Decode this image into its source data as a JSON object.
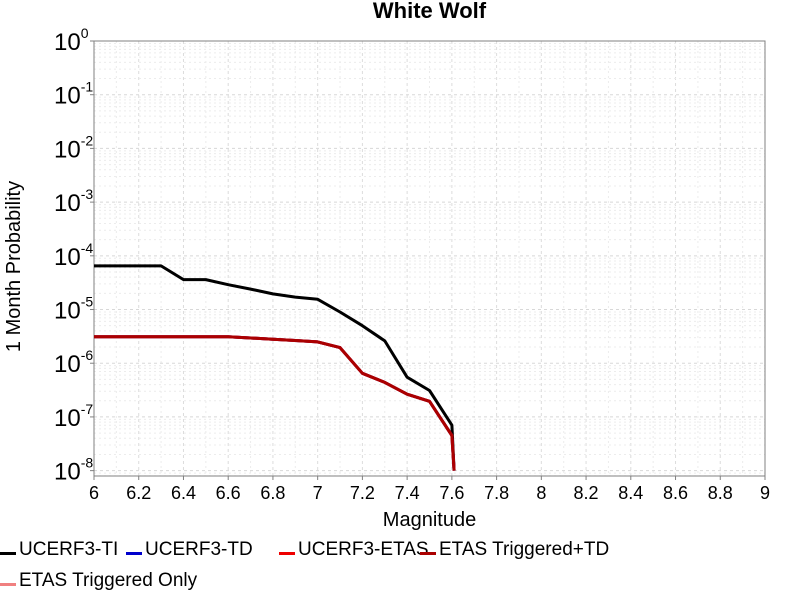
{
  "chart_data": {
    "type": "line",
    "title": "White Wolf",
    "xlabel": "Magnitude",
    "ylabel": "1 Month Probability",
    "xlim": [
      6,
      9
    ],
    "ylim_log10": [
      -8.1,
      0
    ],
    "y_scale": "log",
    "grid": true,
    "x_ticks": [
      "6",
      "6.2",
      "6.4",
      "6.6",
      "6.8",
      "7",
      "7.2",
      "7.4",
      "7.6",
      "7.8",
      "8",
      "8.2",
      "8.4",
      "8.6",
      "8.8",
      "9"
    ],
    "y_tick_base": "10",
    "y_tick_exponents": [
      "0",
      "-1",
      "-2",
      "-3",
      "-4",
      "-5",
      "-6",
      "-7",
      "-8"
    ],
    "legend_position": "bottom",
    "series": [
      {
        "name": "UCERF3-TI",
        "color": "#000000",
        "x": [
          6.0,
          6.1,
          6.2,
          6.3,
          6.4,
          6.5,
          6.6,
          6.7,
          6.8,
          6.9,
          7.0,
          7.1,
          7.2,
          7.3,
          7.4,
          7.5,
          7.6,
          7.61
        ],
        "y": [
          6.5e-05,
          6.5e-05,
          6.5e-05,
          6.5e-05,
          3.6e-05,
          3.6e-05,
          2.9e-05,
          2.4e-05,
          1.95e-05,
          1.7e-05,
          1.55e-05,
          9e-06,
          5e-06,
          2.6e-06,
          5.5e-07,
          3.1e-07,
          7e-08,
          1e-08
        ]
      },
      {
        "name": "UCERF3-TD",
        "color": "#0000cc",
        "x": [
          6.0,
          6.1,
          6.2,
          6.3,
          6.4,
          6.5,
          6.6,
          6.7,
          6.8,
          6.9,
          7.0,
          7.1,
          7.2,
          7.3,
          7.4,
          7.5,
          7.6,
          7.61
        ],
        "y": [
          3.1e-06,
          3.1e-06,
          3.1e-06,
          3.1e-06,
          3.1e-06,
          3.1e-06,
          3.1e-06,
          2.95e-06,
          2.8e-06,
          2.65e-06,
          2.5e-06,
          1.95e-06,
          6.5e-07,
          4.4e-07,
          2.65e-07,
          1.95e-07,
          4.5e-08,
          1e-08
        ]
      },
      {
        "name": "UCERF3-ETAS",
        "color": "#ee0000",
        "x": [
          6.0,
          6.1,
          6.2,
          6.3,
          6.4,
          6.5,
          6.6,
          6.7,
          6.8,
          6.9,
          7.0,
          7.1,
          7.2,
          7.3,
          7.4,
          7.5,
          7.6,
          7.61
        ],
        "y": [
          3.1e-06,
          3.1e-06,
          3.1e-06,
          3.1e-06,
          3.1e-06,
          3.1e-06,
          3.1e-06,
          2.95e-06,
          2.8e-06,
          2.65e-06,
          2.5e-06,
          1.95e-06,
          6.5e-07,
          4.4e-07,
          2.65e-07,
          1.95e-07,
          4.5e-08,
          1e-08
        ]
      },
      {
        "name": "ETAS Triggered+TD",
        "color": "#aa0000",
        "x": [
          6.0,
          6.1,
          6.2,
          6.3,
          6.4,
          6.5,
          6.6,
          6.7,
          6.8,
          6.9,
          7.0,
          7.1,
          7.2,
          7.3,
          7.4,
          7.5,
          7.6,
          7.61
        ],
        "y": [
          3.1e-06,
          3.1e-06,
          3.1e-06,
          3.1e-06,
          3.1e-06,
          3.1e-06,
          3.1e-06,
          2.95e-06,
          2.8e-06,
          2.65e-06,
          2.5e-06,
          1.95e-06,
          6.5e-07,
          4.4e-07,
          2.65e-07,
          1.95e-07,
          4.5e-08,
          1e-08
        ]
      },
      {
        "name": "ETAS Triggered Only",
        "color": "#f08080",
        "x": [],
        "y": []
      }
    ]
  }
}
